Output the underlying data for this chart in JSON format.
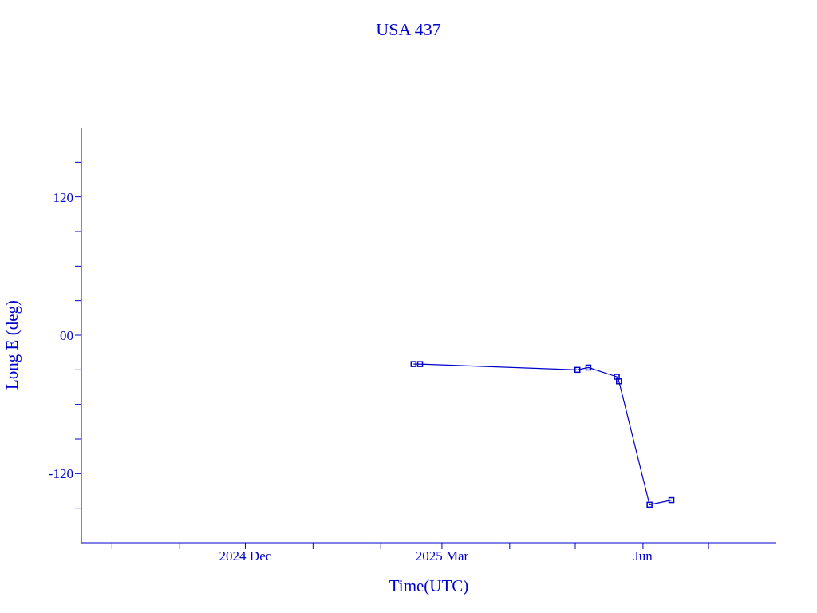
{
  "chart_data": {
    "type": "line",
    "title": "USA 437",
    "xlabel": "Time(UTC)",
    "ylabel": "Long E (deg)",
    "x": [
      "2025-02-16",
      "2025-02-19",
      "2025-05-02",
      "2025-05-07",
      "2025-05-20",
      "2025-05-21",
      "2025-06-04",
      "2025-06-14"
    ],
    "series": [
      {
        "color": "#0000cc",
        "values": [
          -25,
          -25,
          -30,
          -28,
          -36,
          -40,
          -147,
          -143
        ]
      }
    ],
    "xlim": [
      "2024-09-17",
      "2025-08-01"
    ],
    "xticks": [
      {
        "value": "2024-10-01",
        "label": null
      },
      {
        "value": "2024-11-01",
        "label": null
      },
      {
        "value": "2024-12-01",
        "label": "2024 Dec"
      },
      {
        "value": "2025-01-01",
        "label": null
      },
      {
        "value": "2025-02-01",
        "label": null
      },
      {
        "value": "2025-03-01",
        "label": "2025 Mar"
      },
      {
        "value": "2025-04-01",
        "label": null
      },
      {
        "value": "2025-05-01",
        "label": null
      },
      {
        "value": "2025-06-01",
        "label": "Jun"
      },
      {
        "value": "2025-07-01",
        "label": null
      }
    ],
    "ylim": [
      -180,
      180
    ],
    "yticks": [
      {
        "value": -150,
        "label": null
      },
      -120,
      {
        "value": -90,
        "label": null
      },
      {
        "value": -60,
        "label": null
      },
      {
        "value": -30,
        "label": null
      },
      {
        "value": 0,
        "label": "00"
      },
      {
        "value": 30,
        "label": null
      },
      {
        "value": 60,
        "label": null
      },
      {
        "value": 90,
        "label": null
      },
      120,
      {
        "value": 150,
        "label": null
      }
    ],
    "grid": false,
    "legend": false,
    "marker": "square",
    "line_style": "solid"
  }
}
